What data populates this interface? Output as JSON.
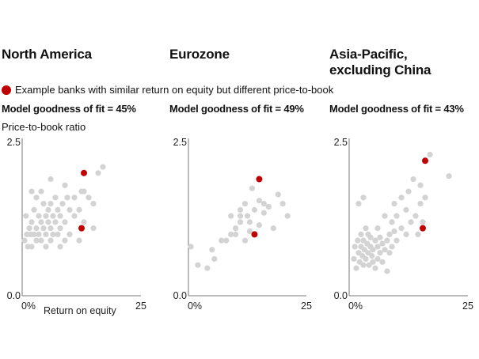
{
  "legend": {
    "label": "Example banks with similar return on equity but different price-to-book",
    "color": "#c00000"
  },
  "ylabel": "Price-to-book ratio",
  "xlabel": "Return on equity",
  "colors": {
    "dot": "#d3d3d3",
    "highlight": "#c00000"
  },
  "chart_data": [
    {
      "type": "scatter",
      "title": "North America",
      "fit_label": "Model goodness of fit = 45%",
      "xlim": [
        0,
        25
      ],
      "ylim": [
        0,
        2.5
      ],
      "xticks": [
        "0%",
        "25"
      ],
      "yticks": [
        "0.0",
        "2.5"
      ],
      "xlabel": "Return on equity",
      "ylabel": "Price-to-book ratio",
      "points": [
        [
          0.5,
          0.9
        ],
        [
          0.8,
          1.3
        ],
        [
          1,
          1.0
        ],
        [
          1.2,
          0.8
        ],
        [
          1.5,
          1.1
        ],
        [
          1.8,
          1.0
        ],
        [
          2,
          1.2
        ],
        [
          2,
          0.8
        ],
        [
          2.5,
          1.4
        ],
        [
          2.5,
          1.0
        ],
        [
          3,
          1.6
        ],
        [
          3,
          1.1
        ],
        [
          3,
          0.9
        ],
        [
          3.5,
          1.3
        ],
        [
          3.5,
          1.0
        ],
        [
          4,
          1.7
        ],
        [
          4,
          1.2
        ],
        [
          4,
          0.9
        ],
        [
          4.5,
          1.5
        ],
        [
          4.5,
          1.1
        ],
        [
          5,
          1.3
        ],
        [
          5,
          1.0
        ],
        [
          5,
          0.8
        ],
        [
          5.5,
          1.4
        ],
        [
          5.5,
          1.2
        ],
        [
          6,
          1.5
        ],
        [
          6,
          1.1
        ],
        [
          6,
          0.9
        ],
        [
          6.5,
          1.3
        ],
        [
          6.5,
          1.0
        ],
        [
          7,
          1.6
        ],
        [
          7,
          1.2
        ],
        [
          7.5,
          1.4
        ],
        [
          7.5,
          1.0
        ],
        [
          8,
          1.3
        ],
        [
          8,
          1.1
        ],
        [
          8,
          0.8
        ],
        [
          8.5,
          1.5
        ],
        [
          9,
          1.2
        ],
        [
          9,
          0.9
        ],
        [
          9.5,
          1.6
        ],
        [
          10,
          1.4
        ],
        [
          10,
          1.0
        ],
        [
          11,
          1.6
        ],
        [
          11,
          1.3
        ],
        [
          12,
          1.4
        ],
        [
          12,
          0.9
        ],
        [
          12.5,
          1.7
        ],
        [
          13,
          1.2
        ],
        [
          6,
          1.9
        ],
        [
          2,
          1.7
        ],
        [
          9,
          1.8
        ],
        [
          16,
          2.0
        ],
        [
          17,
          2.1
        ],
        [
          15,
          1.5
        ],
        [
          14,
          1.6
        ],
        [
          15,
          1.1
        ],
        [
          13,
          1.7
        ]
      ],
      "highlight": [
        [
          13,
          2.0
        ],
        [
          12.5,
          1.1
        ]
      ]
    },
    {
      "type": "scatter",
      "title": "Eurozone",
      "fit_label": "Model goodness of fit = 49%",
      "xlim": [
        0,
        25
      ],
      "ylim": [
        0,
        2.5
      ],
      "xticks": [
        "0%",
        "25"
      ],
      "yticks": [
        "0.0",
        "2.5"
      ],
      "points": [
        [
          0.5,
          0.8
        ],
        [
          2,
          0.5
        ],
        [
          5,
          0.75
        ],
        [
          5.5,
          0.6
        ],
        [
          4,
          0.45
        ],
        [
          7,
          0.9
        ],
        [
          8,
          0.9
        ],
        [
          9,
          1.0
        ],
        [
          9,
          1.3
        ],
        [
          10,
          1.1
        ],
        [
          11,
          1.2
        ],
        [
          11,
          1.4
        ],
        [
          12,
          0.9
        ],
        [
          12,
          1.5
        ],
        [
          12.5,
          1.3
        ],
        [
          13,
          1.05
        ],
        [
          13,
          1.2
        ],
        [
          13.5,
          1.75
        ],
        [
          14,
          1.4
        ],
        [
          15,
          1.55
        ],
        [
          15,
          1.15
        ],
        [
          16,
          1.5
        ],
        [
          16,
          1.35
        ],
        [
          17,
          1.45
        ],
        [
          18,
          1.1
        ],
        [
          19,
          1.65
        ],
        [
          20,
          1.5
        ],
        [
          21,
          1.3
        ],
        [
          11,
          1.3
        ],
        [
          10,
          1.0
        ]
      ],
      "highlight": [
        [
          15,
          1.9
        ],
        [
          14,
          1.0
        ]
      ]
    },
    {
      "type": "scatter",
      "title": "Asia-Pacific, excluding China",
      "fit_label": "Model goodness of fit = 43%",
      "xlim": [
        0,
        25
      ],
      "ylim": [
        0,
        2.5
      ],
      "xticks": [
        "0%",
        "25"
      ],
      "yticks": [
        "0.0",
        "2.5"
      ],
      "points": [
        [
          1,
          0.6
        ],
        [
          1.2,
          0.8
        ],
        [
          1.5,
          0.45
        ],
        [
          1.8,
          0.9
        ],
        [
          2,
          0.7
        ],
        [
          2.2,
          0.55
        ],
        [
          2.5,
          1.0
        ],
        [
          2.5,
          0.8
        ],
        [
          2.8,
          0.65
        ],
        [
          3,
          0.5
        ],
        [
          3,
          0.9
        ],
        [
          3.2,
          0.75
        ],
        [
          3.5,
          1.1
        ],
        [
          3.5,
          0.6
        ],
        [
          3.8,
          0.85
        ],
        [
          4,
          0.7
        ],
        [
          4,
          1.0
        ],
        [
          4.2,
          0.5
        ],
        [
          4.5,
          0.8
        ],
        [
          4.5,
          0.95
        ],
        [
          4.8,
          0.65
        ],
        [
          5,
          0.75
        ],
        [
          5,
          0.55
        ],
        [
          5.5,
          0.9
        ],
        [
          5.5,
          0.45
        ],
        [
          6,
          0.8
        ],
        [
          6,
          1.1
        ],
        [
          6,
          0.6
        ],
        [
          6.5,
          0.7
        ],
        [
          6.5,
          0.95
        ],
        [
          7,
          0.85
        ],
        [
          7,
          0.55
        ],
        [
          7.5,
          0.75
        ],
        [
          7.5,
          1.3
        ],
        [
          8,
          0.9
        ],
        [
          8,
          0.4
        ],
        [
          8.5,
          1.0
        ],
        [
          8.5,
          0.7
        ],
        [
          9,
          1.2
        ],
        [
          9,
          0.8
        ],
        [
          9.5,
          1.05
        ],
        [
          9.5,
          1.5
        ],
        [
          10,
          1.3
        ],
        [
          10,
          0.9
        ],
        [
          11,
          1.6
        ],
        [
          11,
          1.1
        ],
        [
          12,
          1.4
        ],
        [
          12,
          1.0
        ],
        [
          12.5,
          1.7
        ],
        [
          13,
          1.2
        ],
        [
          13.5,
          1.9
        ],
        [
          14,
          1.3
        ],
        [
          14.5,
          1.0
        ],
        [
          15,
          1.5
        ],
        [
          15,
          1.8
        ],
        [
          15.5,
          1.2
        ],
        [
          16,
          1.6
        ],
        [
          17,
          2.3
        ],
        [
          21,
          1.95
        ],
        [
          2,
          1.5
        ],
        [
          3,
          1.6
        ]
      ],
      "highlight": [
        [
          16,
          2.2
        ],
        [
          15.5,
          1.1
        ]
      ]
    }
  ]
}
